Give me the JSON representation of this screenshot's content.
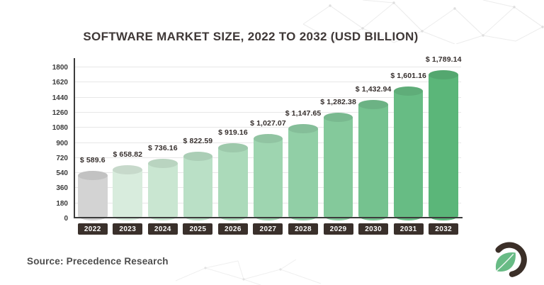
{
  "page": {
    "title": "SOFTWARE MARKET SIZE, 2022 TO 2032 (USD BILLION)",
    "source_note": "Source: Precedence Research",
    "logo_name": "precedence-research-logo"
  },
  "colors": {
    "accent_green": "#5bb679",
    "bar_gray": "#d3d3d3",
    "axis": "#3c3c3c",
    "gridline": "#e7e7e7",
    "year_pill_bg": "#3a302b",
    "year_pill_text": "#ffffff",
    "title_text": "#3f3837",
    "value_label_text": "#362f2d",
    "source_text": "#4d4d4d",
    "logo_dark": "#3b2f28",
    "logo_green": "#68bb85"
  },
  "chart_data": {
    "type": "bar",
    "bar_style": "cylinder",
    "title": "SOFTWARE MARKET SIZE, 2022 TO 2032 (USD BILLION)",
    "categories": [
      "2022",
      "2023",
      "2024",
      "2025",
      "2026",
      "2027",
      "2028",
      "2029",
      "2030",
      "2031",
      "2032"
    ],
    "values": [
      589.6,
      658.82,
      736.16,
      822.59,
      919.16,
      1027.07,
      1147.65,
      1282.38,
      1432.94,
      1601.16,
      1789.14
    ],
    "value_labels": [
      "$ 589.6",
      "$ 658.82",
      "$ 736.16",
      "$ 822.59",
      "$ 919.16",
      "$ 1,027.07",
      "$ 1,147.65",
      "$ 1,282.38",
      "$ 1,432.94",
      "$ 1,601.16",
      "$ 1,789.14"
    ],
    "bar_colors": [
      "#d3d3d3",
      "#d8ecdd",
      "#c9e6d1",
      "#bae0c6",
      "#abdaba",
      "#9ed5b0",
      "#91cfa6",
      "#84c99b",
      "#75c28f",
      "#67bc84",
      "#5bb679"
    ],
    "xlabel": "",
    "ylabel": "",
    "ylim": [
      0,
      1800
    ],
    "yticks": [
      0,
      180,
      360,
      540,
      720,
      900,
      1080,
      1260,
      1440,
      1620,
      1800
    ],
    "grid": true,
    "legend": "none",
    "source": "Source: Precedence Research"
  }
}
